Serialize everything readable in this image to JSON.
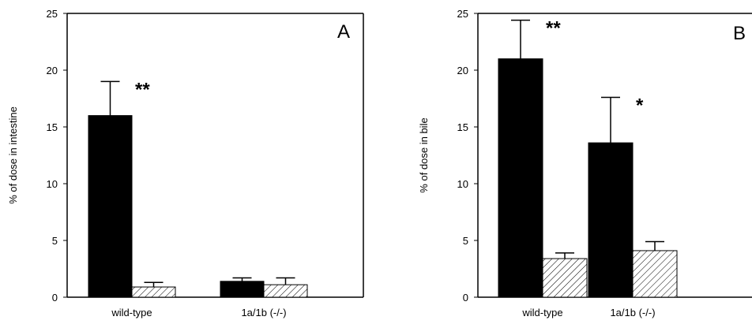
{
  "chart_data": [
    {
      "type": "bar",
      "panel_label": "A",
      "ylabel": "% of dose in intestine",
      "xlabel": "",
      "ylim": [
        0,
        25
      ],
      "yticks": [
        "0",
        "5",
        "10",
        "15",
        "20",
        "25"
      ],
      "categories": [
        "wild-type",
        "1a/1b (-/-)"
      ],
      "series": [
        {
          "fill": "solid",
          "color": "#000000",
          "values": [
            16.0,
            1.4
          ],
          "errors": [
            3.0,
            0.3
          ]
        },
        {
          "fill": "hatched",
          "color": "#000000",
          "values": [
            0.9,
            1.1
          ],
          "errors": [
            0.4,
            0.6
          ]
        }
      ],
      "annotations": [
        {
          "category_index": 0,
          "series_index": 0,
          "text": "**"
        }
      ],
      "grid": false,
      "legend": "none"
    },
    {
      "type": "bar",
      "panel_label": "B",
      "ylabel": "% of dose in bile",
      "xlabel": "",
      "ylim": [
        0,
        25
      ],
      "yticks": [
        "0",
        "5",
        "10",
        "15",
        "20",
        "25"
      ],
      "categories": [
        "wild-type",
        "1a/1b (-/-)"
      ],
      "series": [
        {
          "fill": "solid",
          "color": "#000000",
          "values": [
            21.0,
            13.6
          ],
          "errors": [
            3.4,
            4.0
          ]
        },
        {
          "fill": "hatched",
          "color": "#000000",
          "values": [
            3.4,
            4.1
          ],
          "errors": [
            0.5,
            0.8
          ]
        }
      ],
      "annotations": [
        {
          "category_index": 0,
          "series_index": 0,
          "text": "**"
        },
        {
          "category_index": 1,
          "series_index": 0,
          "text": "*"
        }
      ],
      "grid": false,
      "legend": "none"
    }
  ]
}
